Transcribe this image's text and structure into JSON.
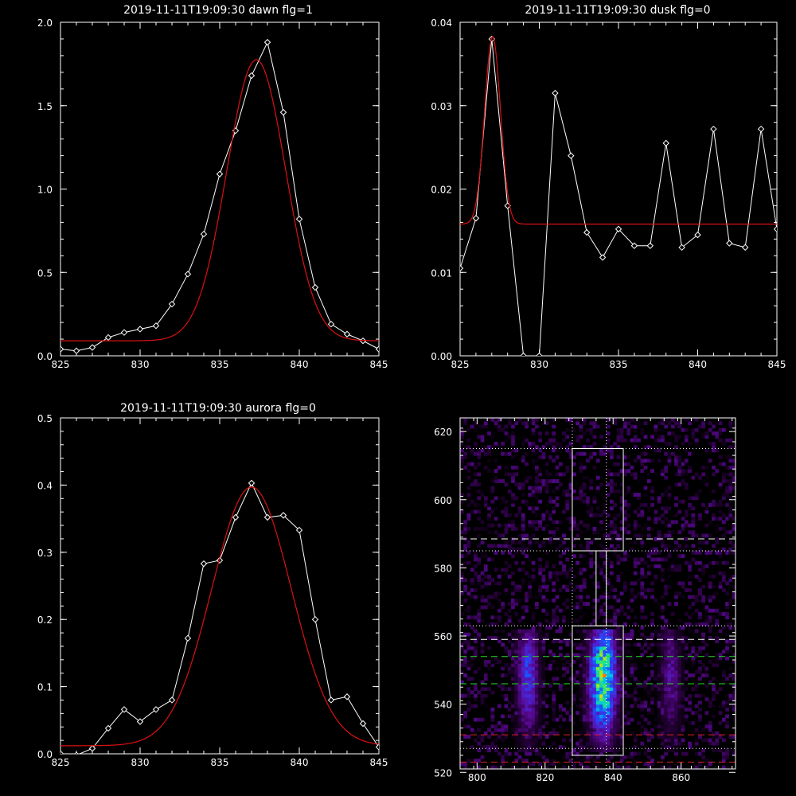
{
  "chart_data": [
    {
      "type": "line",
      "title": "2019-11-11T19:09:30 dawn flg=1",
      "xlim": [
        825,
        845
      ],
      "ylim": [
        0,
        2.0
      ],
      "xticks": [
        825,
        830,
        835,
        840,
        845
      ],
      "yticks": [
        0.0,
        0.5,
        1.0,
        1.5,
        2.0
      ],
      "ytick_labels": [
        "0.0",
        "0.5",
        "1.0",
        "1.5",
        "2.0"
      ],
      "grid": false,
      "series": [
        {
          "style": "white-diamonds",
          "color": "#ffffff",
          "x": [
            825,
            826,
            827,
            828,
            829,
            830,
            831,
            832,
            833,
            834,
            835,
            836,
            837,
            838,
            839,
            840,
            841,
            842,
            843,
            844,
            845
          ],
          "y": [
            0.04,
            0.03,
            0.05,
            0.11,
            0.14,
            0.16,
            0.18,
            0.31,
            0.49,
            0.73,
            1.09,
            1.35,
            1.68,
            1.88,
            1.46,
            0.82,
            0.41,
            0.19,
            0.13,
            0.09,
            0.04
          ]
        },
        {
          "style": "red-fit",
          "color": "#dd1111",
          "fit": {
            "kind": "gaussian",
            "amplitude": 1.685,
            "center": 837.3,
            "sigma": 1.85,
            "offset": 0.09
          }
        }
      ]
    },
    {
      "type": "line",
      "title": "2019-11-11T19:09:30 dusk flg=0",
      "xlim": [
        825,
        845
      ],
      "ylim": [
        0,
        0.04
      ],
      "xticks": [
        825,
        830,
        835,
        840,
        845
      ],
      "yticks": [
        0.0,
        0.01,
        0.02,
        0.03,
        0.04
      ],
      "ytick_labels": [
        "0.00",
        "0.01",
        "0.02",
        "0.03",
        "0.04"
      ],
      "grid": false,
      "series": [
        {
          "style": "white-diamonds",
          "color": "#ffffff",
          "x": [
            825,
            826,
            827,
            828,
            829,
            830,
            831,
            832,
            833,
            834,
            835,
            836,
            837,
            838,
            839,
            840,
            841,
            842,
            843,
            844,
            845
          ],
          "y": [
            0.0105,
            0.0165,
            0.038,
            0.018,
            0.0,
            0.0,
            0.0315,
            0.024,
            0.0148,
            0.0118,
            0.0152,
            0.0132,
            0.0132,
            0.0255,
            0.013,
            0.0145,
            0.0272,
            0.0135,
            0.013,
            0.0272,
            0.0152
          ]
        },
        {
          "style": "red-fit",
          "color": "#dd1111",
          "fit": {
            "kind": "gaussian",
            "amplitude": 0.0225,
            "center": 827.05,
            "sigma": 0.5,
            "offset": 0.0158
          }
        }
      ]
    },
    {
      "type": "line",
      "title": "2019-11-11T19:09:30 aurora flg=0",
      "xlim": [
        825,
        845
      ],
      "ylim": [
        0,
        0.5
      ],
      "xticks": [
        825,
        830,
        835,
        840,
        845
      ],
      "yticks": [
        0.0,
        0.1,
        0.2,
        0.3,
        0.4,
        0.5
      ],
      "ytick_labels": [
        "0.0",
        "0.1",
        "0.2",
        "0.3",
        "0.4",
        "0.5"
      ],
      "grid": false,
      "series": [
        {
          "style": "white-diamonds",
          "color": "#ffffff",
          "x": [
            825,
            826,
            827,
            828,
            829,
            830,
            831,
            832,
            833,
            834,
            835,
            836,
            837,
            838,
            839,
            840,
            841,
            842,
            843,
            844,
            845
          ],
          "y": [
            0.0,
            -0.002,
            0.008,
            0.038,
            0.066,
            0.048,
            0.066,
            0.08,
            0.172,
            0.283,
            0.288,
            0.352,
            0.403,
            0.352,
            0.355,
            0.333,
            0.2,
            0.08,
            0.085,
            0.045,
            0.01
          ]
        },
        {
          "style": "red-fit",
          "color": "#dd1111",
          "fit": {
            "kind": "gaussian",
            "amplitude": 0.385,
            "center": 837.0,
            "sigma": 2.5,
            "offset": 0.012
          }
        }
      ]
    },
    {
      "type": "heatmap",
      "title": "",
      "xlim": [
        795,
        876
      ],
      "ylim": [
        521,
        624
      ],
      "xticks": [
        800,
        820,
        840,
        860
      ],
      "yticks": [
        520,
        540,
        560,
        580,
        600,
        620
      ],
      "grid": false,
      "description_of_intensity": "bright emission band x≈830-842, y≈526-562; weaker band x≈810-820 and x≈853-860 in same y range; faint purple noise elsewhere",
      "overlays": {
        "dotted_vertical_lines_x": [
          828,
          838
        ],
        "dotted_horizontal_lines_y": [
          615,
          585,
          563,
          527
        ],
        "white_dashed_lines_y": [
          588.5,
          559
        ],
        "green_dashed_lines_y": [
          554,
          546
        ],
        "red_dashed_lines_y": [
          531,
          523
        ],
        "boxes": [
          {
            "x": [
              828,
              843
            ],
            "y": [
              585,
              615
            ],
            "color": "#ffffff"
          },
          {
            "x": [
              828,
              843
            ],
            "y": [
              525,
              563
            ],
            "color": "#ffffff"
          }
        ],
        "connector": {
          "x": [
            835,
            838
          ],
          "y": [
            563,
            585
          ],
          "color": "#ffffff"
        }
      }
    }
  ]
}
